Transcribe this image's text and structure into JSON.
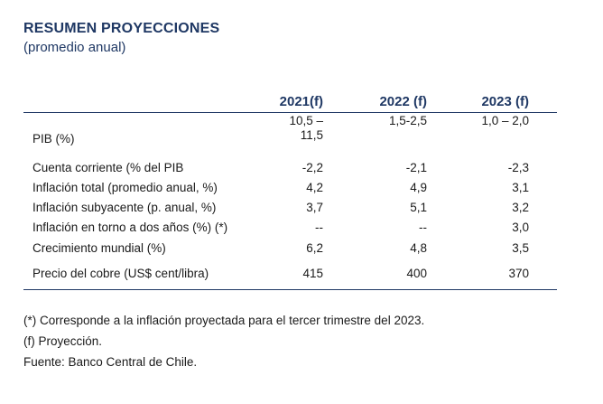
{
  "title": "RESUMEN PROYECCIONES",
  "subtitle": "(promedio anual)",
  "columns": [
    "2021(f)",
    "2022 (f)",
    "2023 (f)"
  ],
  "pib": {
    "label": "PIB (%)",
    "v2021_line1": "10,5 –",
    "v2021_line2": "11,5",
    "v2022": "1,5-2,5",
    "v2023": "1,0 – 2,0"
  },
  "rows": [
    {
      "label": "Cuenta corriente (% del PIB",
      "v2021": "-2,2",
      "v2022": "-2,1",
      "v2023": "-2,3"
    },
    {
      "label": "Inflación total (promedio anual, %)",
      "v2021": "4,2",
      "v2022": "4,9",
      "v2023": "3,1"
    },
    {
      "label": "Inflación subyacente (p. anual, %)",
      "v2021": "3,7",
      "v2022": "5,1",
      "v2023": "3,2"
    },
    {
      "label": "Inflación en torno a dos años (%) (*)",
      "v2021": "--",
      "v2022": "--",
      "v2023": "3,0"
    },
    {
      "label": "Crecimiento mundial (%)",
      "v2021": "6,2",
      "v2022": "4,8",
      "v2023": "3,5"
    },
    {
      "label": "Precio del cobre (US$ cent/libra)",
      "v2021": "415",
      "v2022": "400",
      "v2023": "370"
    }
  ],
  "notes": [
    "(*) Corresponde a la inflación proyectada para el tercer trimestre del 2023.",
    "(f) Proyección.",
    "Fuente: Banco Central de Chile."
  ]
}
